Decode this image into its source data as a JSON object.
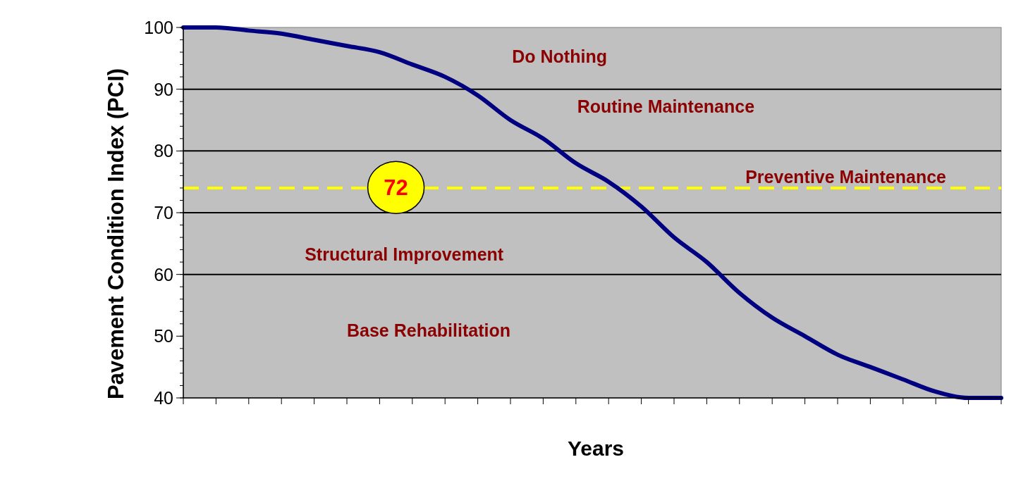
{
  "chart_data": {
    "type": "line",
    "xlabel": "Years",
    "ylabel": "Pavement Condition Index (PCI)",
    "categories": [
      null,
      null,
      null,
      null,
      null,
      null,
      null,
      null,
      null,
      null,
      null,
      null,
      null,
      null,
      null,
      null,
      null,
      null,
      null,
      null,
      null,
      null,
      null,
      null,
      null,
      null
    ],
    "series": [
      {
        "color": "#000080",
        "values": [
          100,
          100,
          99.5,
          99,
          98,
          97,
          96,
          94,
          92,
          89,
          85,
          82,
          78,
          75,
          71,
          66,
          62,
          57,
          53,
          50,
          47,
          45,
          43,
          41,
          40,
          40
        ]
      }
    ],
    "ylim": [
      40,
      100
    ],
    "yticks": [
      40,
      50,
      60,
      70,
      80,
      90,
      100
    ],
    "marker": "none",
    "line_style": "solid",
    "ref_lines": [
      {
        "axis": "y",
        "value": 90,
        "color": "#000000",
        "line_style": "solid"
      },
      {
        "axis": "y",
        "value": 80,
        "color": "#000000",
        "line_style": "solid"
      },
      {
        "axis": "y",
        "value": 70,
        "color": "#000000",
        "line_style": "solid"
      },
      {
        "axis": "y",
        "value": 60,
        "color": "#000000",
        "line_style": "solid"
      },
      {
        "axis": "y",
        "value": 74,
        "color": "#ffff00",
        "line_style": "dashed"
      }
    ],
    "annotations": [
      "Do Nothing",
      "Routine Maintenance",
      "Preventive Maintenance",
      "Structural Improvement",
      "Base Rehabilitation",
      "72"
    ]
  }
}
